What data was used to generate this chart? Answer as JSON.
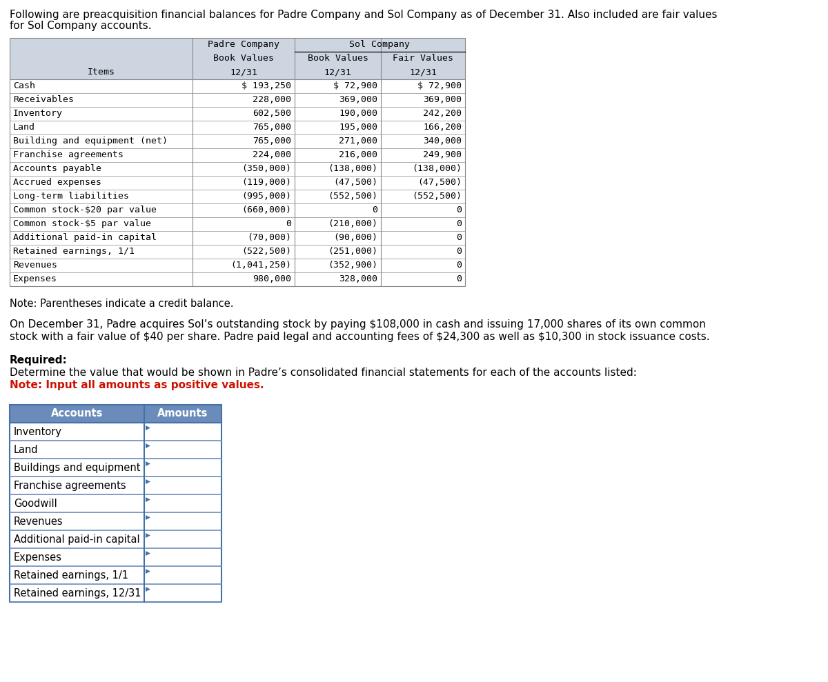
{
  "intro_text_line1": "Following are preacquisition financial balances for Padre Company and Sol Company as of December 31. Also included are fair values",
  "intro_text_line2": "for Sol Company accounts.",
  "table1": {
    "rows": [
      [
        "Cash",
        "$ 193,250",
        "$ 72,900",
        "$ 72,900"
      ],
      [
        "Receivables",
        "228,000",
        "369,000",
        "369,000"
      ],
      [
        "Inventory",
        "602,500",
        "190,000",
        "242,200"
      ],
      [
        "Land",
        "765,000",
        "195,000",
        "166,200"
      ],
      [
        "Building and equipment (net)",
        "765,000",
        "271,000",
        "340,000"
      ],
      [
        "Franchise agreements",
        "224,000",
        "216,000",
        "249,900"
      ],
      [
        "Accounts payable",
        "(350,000)",
        "(138,000)",
        "(138,000)"
      ],
      [
        "Accrued expenses",
        "(119,000)",
        "(47,500)",
        "(47,500)"
      ],
      [
        "Long-term liabilities",
        "(995,000)",
        "(552,500)",
        "(552,500)"
      ],
      [
        "Common stock-$20 par value",
        "(660,000)",
        "0",
        "0"
      ],
      [
        "Common stock-$5 par value",
        "0",
        "(210,000)",
        "0"
      ],
      [
        "Additional paid-in capital",
        "(70,000)",
        "(90,000)",
        "0"
      ],
      [
        "Retained earnings, 1/1",
        "(522,500)",
        "(251,000)",
        "0"
      ],
      [
        "Revenues",
        "(1,041,250)",
        "(352,900)",
        "0"
      ],
      [
        "Expenses",
        "980,000",
        "328,000",
        "0"
      ]
    ],
    "header_bg": "#cdd5e0",
    "border_color": "#888888",
    "sol_underline_color": "#000000"
  },
  "note_text": "Note: Parentheses indicate a credit balance.",
  "para_text_line1": "On December 31, Padre acquires Sol’s outstanding stock by paying $108,000 in cash and issuing 17,000 shares of its own common",
  "para_text_line2": "stock with a fair value of $40 per share. Padre paid legal and accounting fees of $24,300 as well as $10,300 in stock issuance costs.",
  "required_label": "Required:",
  "required_text": "Determine the value that would be shown in Padre’s consolidated financial statements for each of the accounts listed:",
  "note2_text": "Note: Input all amounts as positive values.",
  "table2_rows": [
    "Inventory",
    "Land",
    "Buildings and equipment",
    "Franchise agreements",
    "Goodwill",
    "Revenues",
    "Additional paid-in capital",
    "Expenses",
    "Retained earnings, 1/1",
    "Retained earnings, 12/31"
  ],
  "table2_header_bg": "#6b8cba",
  "table2_border_color": "#4472a8",
  "table2_row_sep_color": "#6b8cba",
  "bg_color": "#ffffff",
  "text_color": "#000000",
  "mono_font": "monospace",
  "sans_font": "DejaVu Sans"
}
